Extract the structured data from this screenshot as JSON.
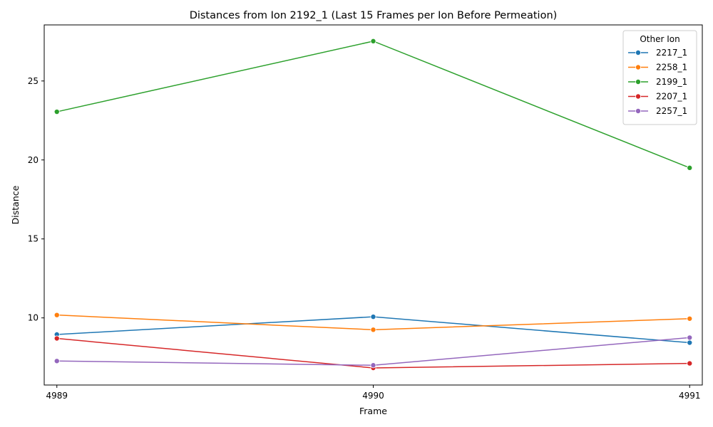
{
  "chart_data": {
    "type": "line",
    "title": "Distances from Ion 2192_1 (Last 15 Frames per Ion Before Permeation)",
    "xlabel": "Frame",
    "ylabel": "Distance",
    "x": [
      4989,
      4990,
      4991
    ],
    "x_tick_labels": [
      "4989",
      "4990",
      "4991"
    ],
    "y_ticks": [
      10,
      15,
      20,
      25
    ],
    "y_tick_labels": [
      "10",
      "15",
      "20",
      "25"
    ],
    "xlim": [
      4988.96,
      4991.04
    ],
    "ylim": [
      5.75,
      28.55
    ],
    "grid": false,
    "legend": {
      "title": "Other Ion",
      "position": "top-right"
    },
    "series": [
      {
        "name": "2217_1",
        "color": "#1f77b4",
        "values": [
          8.95,
          10.07,
          8.43
        ]
      },
      {
        "name": "2258_1",
        "color": "#ff7f0e",
        "values": [
          10.18,
          9.25,
          9.95
        ]
      },
      {
        "name": "2199_1",
        "color": "#2ca02c",
        "values": [
          23.05,
          27.52,
          19.5
        ]
      },
      {
        "name": "2207_1",
        "color": "#d62728",
        "values": [
          8.7,
          6.83,
          7.12
        ]
      },
      {
        "name": "2257_1",
        "color": "#9467bd",
        "values": [
          7.27,
          7.0,
          8.75
        ]
      }
    ]
  }
}
